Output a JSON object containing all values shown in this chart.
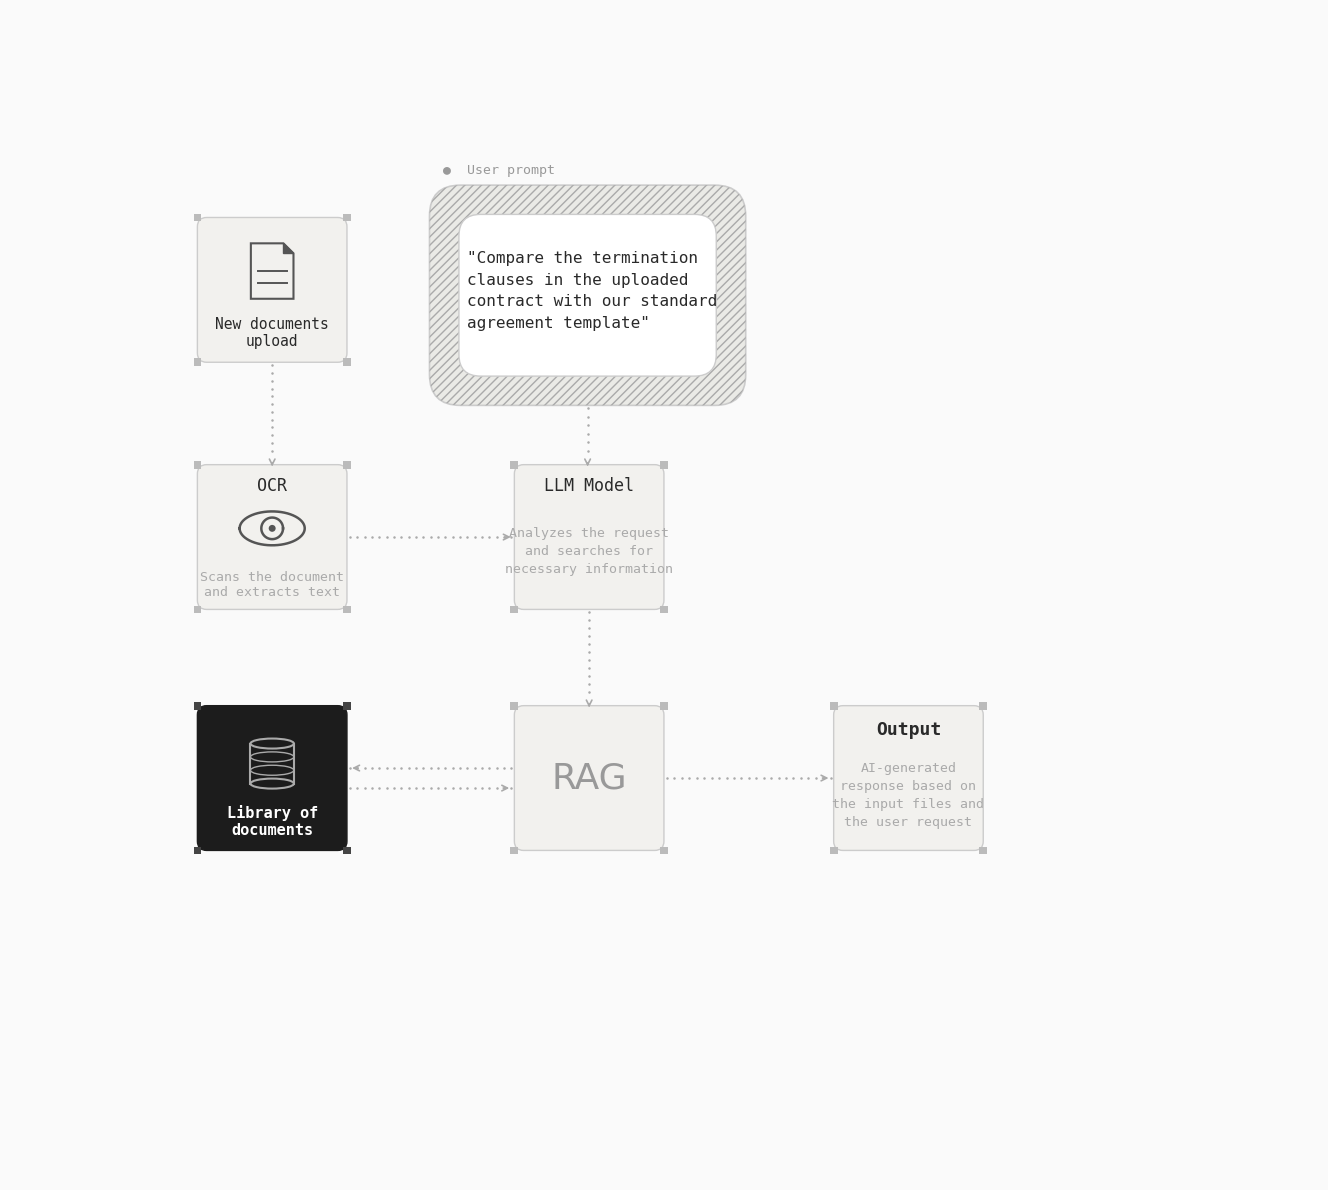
{
  "bg_color": "#f7f7f5",
  "white_bg": "#fafafa",
  "box_bg": "#f2f1ee",
  "dark_box_bg": "#1c1c1c",
  "box_border": "#cccccc",
  "corner_color": "#bbbbbb",
  "arrow_color": "#aaaaaa",
  "text_dark": "#2a2a2a",
  "text_gray": "#aaaaaa",
  "text_white": "#ffffff",
  "user_prompt_label": "●  User prompt",
  "user_prompt_text": "\"Compare the termination\nclauses in the uploaded\ncontract with our standard\nagreement template\"",
  "box1_title": "New documents\nupload",
  "box2_title": "OCR",
  "box2_sub": "Scans the document\nand extracts text",
  "box3_title": "LLM Model",
  "box3_sub": "Analyzes the request\nand searches for\nnecessary information",
  "box4_title": "RAG",
  "box5_title": "Output",
  "box5_sub": "AI-generated\nresponse based on\nthe input files and\nthe user request",
  "box6_title": "Library of\ndocuments"
}
